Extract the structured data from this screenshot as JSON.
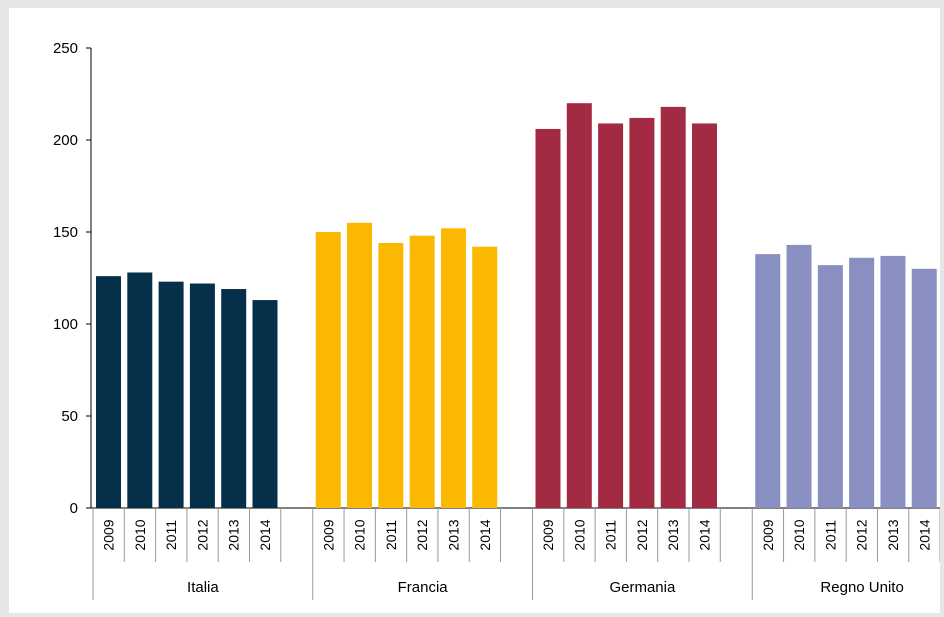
{
  "chart_data": {
    "type": "bar",
    "title": "",
    "xlabel": "",
    "ylabel": "",
    "ylim": [
      0,
      250
    ],
    "yticks": [
      0,
      50,
      100,
      150,
      200,
      250
    ],
    "grid": false,
    "legend": "none",
    "years": [
      "2009",
      "2010",
      "2011",
      "2012",
      "2013",
      "2014"
    ],
    "groups": [
      {
        "name": "Italia",
        "color": "#06304a",
        "values": [
          126,
          128,
          123,
          122,
          119,
          113
        ]
      },
      {
        "name": "Francia",
        "color": "#fbb800",
        "values": [
          150,
          155,
          144,
          148,
          152,
          142
        ]
      },
      {
        "name": "Germania",
        "color": "#a32a43",
        "values": [
          206,
          220,
          209,
          212,
          218,
          209
        ]
      },
      {
        "name": "Regno Unito",
        "color": "#8a8fc1",
        "values": [
          138,
          143,
          132,
          136,
          137,
          130
        ]
      }
    ]
  }
}
